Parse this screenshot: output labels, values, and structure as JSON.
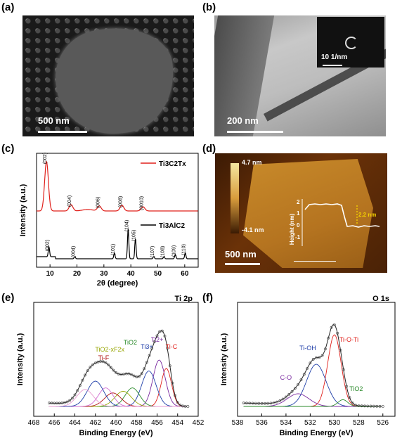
{
  "panels": {
    "a": {
      "label": "(a)",
      "scale": "500 nm"
    },
    "b": {
      "label": "(b)",
      "scale": "200 nm",
      "inset_scale": "10 1/nm"
    },
    "c": {
      "label": "(c)"
    },
    "d": {
      "label": "(d)",
      "scale": "500 nm",
      "cbar_top": "4.7 nm",
      "cbar_bottom": "-4.1 nm",
      "profile_label": "2.2 nm"
    },
    "e": {
      "label": "(e)",
      "title": "Ti 2p"
    },
    "f": {
      "label": "(f)",
      "title": "O 1s"
    }
  },
  "colors": {
    "xrd_mxene": "#e0201b",
    "xrd_max": "#000000",
    "fit_ti_c": "#e0201b",
    "fit_ti2": "#7a2aa0",
    "fit_ti3": "#1f3ea8",
    "fit_tio2": "#2a8a2a",
    "fit_tif": "#b01010"
  },
  "chart_data": [
    {
      "type": "line",
      "panel": "c",
      "xlabel": "2θ (degree)",
      "ylabel": "Intensity (a.u.)",
      "xlim": [
        5,
        65
      ],
      "xticks": [
        10,
        20,
        30,
        40,
        50,
        60
      ],
      "series": [
        {
          "name": "Ti3C2Tx",
          "peaks": [
            {
              "x": 8.7,
              "label": "(002)"
            },
            {
              "x": 17.8,
              "label": "(004)"
            },
            {
              "x": 28.3,
              "label": "(006)"
            },
            {
              "x": 36.7,
              "label": "(008)"
            },
            {
              "x": 44.5,
              "label": "(0010)"
            }
          ]
        },
        {
          "name": "Ti3AlC2",
          "peaks": [
            {
              "x": 9.6,
              "label": "(002)"
            },
            {
              "x": 19.2,
              "label": "(004)"
            },
            {
              "x": 33.9,
              "label": "(101)"
            },
            {
              "x": 39.0,
              "label": "(104)"
            },
            {
              "x": 41.7,
              "label": "(105)"
            },
            {
              "x": 48.5,
              "label": "(107)"
            },
            {
              "x": 52.3,
              "label": "(108)"
            },
            {
              "x": 56.5,
              "label": "(109)"
            },
            {
              "x": 60.2,
              "label": "(110)"
            }
          ]
        }
      ]
    },
    {
      "type": "line",
      "panel": "d-inset",
      "ylabel": "Height (nm)",
      "yticks": [
        -1,
        0,
        1,
        2
      ]
    },
    {
      "type": "line",
      "panel": "e",
      "xlabel": "Binding Energy (eV)",
      "ylabel": "Intensity (a.u.)",
      "xlim": [
        468,
        452
      ],
      "xticks": [
        468,
        466,
        464,
        462,
        460,
        458,
        456,
        454,
        452
      ],
      "annotations": [
        "Ti-C",
        "Ti2+",
        "Ti3+",
        "TiO2",
        "TiO2-xF2x",
        "Ti-F"
      ]
    },
    {
      "type": "line",
      "panel": "f",
      "xlabel": "Binding Energy (eV)",
      "ylabel": "Intensity (a.u.)",
      "xlim": [
        538,
        525
      ],
      "xticks": [
        538,
        536,
        534,
        532,
        530,
        528,
        526
      ],
      "annotations": [
        "Ti-O-Ti",
        "Ti-OH",
        "C-O",
        "TiO2"
      ]
    }
  ]
}
